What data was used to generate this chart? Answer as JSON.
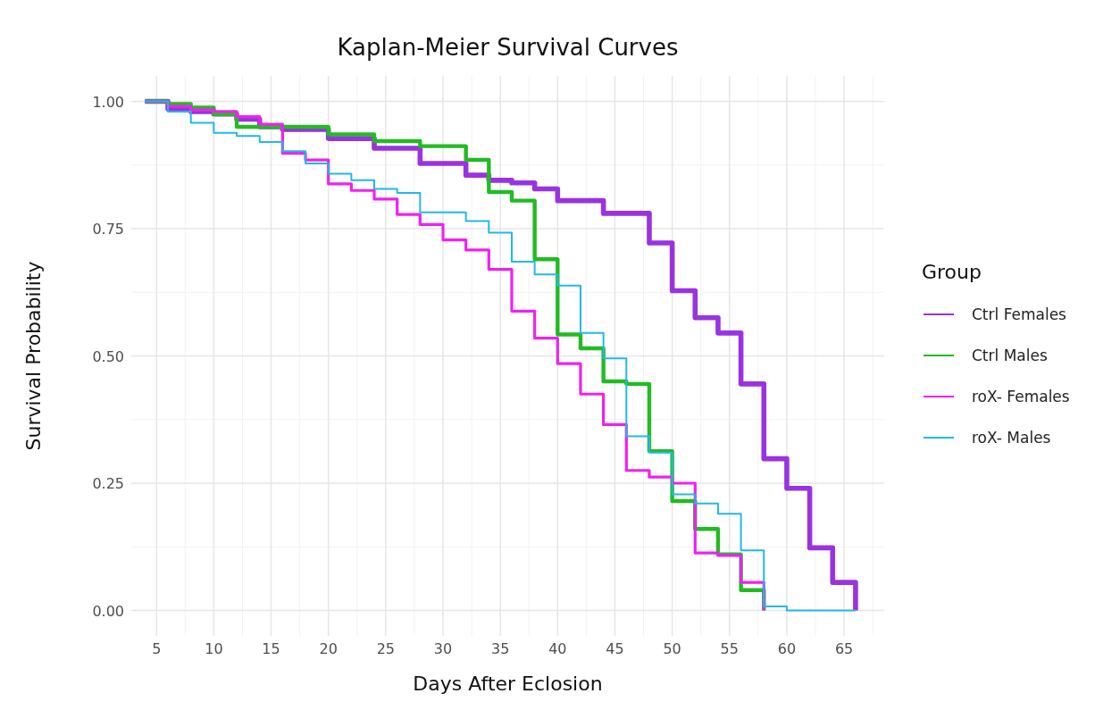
{
  "chart_data": {
    "type": "step",
    "title": "Kaplan-Meier Survival Curves",
    "xlabel": "Days After Eclosion",
    "ylabel": "Survival Probability",
    "legend_title": "Group",
    "legend": "right",
    "grid": true,
    "xlim": [
      2.8,
      68.5
    ],
    "xticks": [
      5,
      10,
      15,
      20,
      25,
      30,
      35,
      40,
      45,
      50,
      55,
      60,
      65
    ],
    "ylim": [
      -0.05,
      1.05
    ],
    "yticks": [
      {
        "value": 0,
        "label": "0.00"
      },
      {
        "value": 0.25,
        "label": "0.25"
      },
      {
        "value": 0.5,
        "label": "0.50"
      },
      {
        "value": 0.75,
        "label": "0.75"
      },
      {
        "value": 1,
        "label": "1.00"
      }
    ],
    "x": [
      4,
      6,
      8,
      10,
      12,
      14,
      16,
      18,
      20,
      22,
      24,
      26,
      28,
      30,
      32,
      34,
      36,
      38,
      40,
      42,
      44,
      46,
      48,
      50,
      52,
      54,
      56,
      58,
      60,
      62,
      64,
      66
    ],
    "series": [
      {
        "name": "Ctrl Females",
        "color": "#9933e0",
        "values": [
          1.0,
          0.985,
          0.98,
          0.975,
          0.965,
          0.95,
          0.945,
          0.945,
          0.927,
          0.927,
          0.908,
          0.908,
          0.878,
          0.878,
          0.855,
          0.845,
          0.84,
          0.828,
          0.805,
          0.805,
          0.78,
          0.78,
          0.722,
          0.628,
          0.575,
          0.545,
          0.445,
          0.298,
          0.24,
          0.123,
          0.055,
          0
        ]
      },
      {
        "name": "Ctrl Males",
        "color": "#22bb22",
        "values": [
          1.0,
          0.995,
          0.988,
          0.975,
          0.95,
          0.95,
          0.95,
          0.95,
          0.935,
          0.935,
          0.922,
          0.922,
          0.912,
          0.912,
          0.885,
          0.822,
          0.805,
          0.69,
          0.542,
          0.515,
          0.45,
          0.445,
          0.313,
          0.215,
          0.16,
          0.11,
          0.04,
          0,
          null,
          null,
          null,
          null
        ]
      },
      {
        "name": "roX- Females",
        "color": "#ee22ee",
        "values": [
          1.0,
          0.99,
          0.983,
          0.98,
          0.97,
          0.955,
          0.898,
          0.885,
          0.838,
          0.825,
          0.808,
          0.778,
          0.758,
          0.728,
          0.708,
          0.67,
          0.588,
          0.535,
          0.485,
          0.425,
          0.365,
          0.275,
          0.262,
          0.25,
          0.113,
          0.108,
          0.055,
          0,
          null,
          null,
          null,
          null
        ]
      },
      {
        "name": "roX- Males",
        "color": "#22b8e8",
        "values": [
          1.0,
          0.98,
          0.958,
          0.938,
          0.932,
          0.92,
          0.902,
          0.878,
          0.858,
          0.845,
          0.828,
          0.82,
          0.782,
          0.782,
          0.765,
          0.742,
          0.685,
          0.66,
          0.638,
          0.545,
          0.495,
          0.342,
          0.31,
          0.228,
          0.21,
          0.19,
          0.118,
          0.008,
          0,
          0,
          0,
          0
        ]
      }
    ]
  }
}
